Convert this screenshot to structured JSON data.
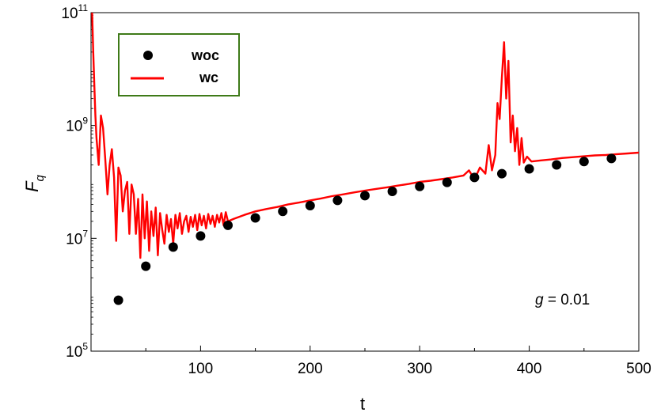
{
  "chart_data": {
    "type": "line",
    "title": "",
    "xlabel": "t",
    "ylabel": "F",
    "ylabel_sub": "q",
    "xlim": [
      0,
      500
    ],
    "ylim": [
      100000,
      100000000000
    ],
    "yscale": "log",
    "grid": false,
    "legend_position": "top-left",
    "x_ticks": [
      {
        "value": 100,
        "label": "100"
      },
      {
        "value": 200,
        "label": "200"
      },
      {
        "value": 300,
        "label": "300"
      },
      {
        "value": 400,
        "label": "400"
      },
      {
        "value": 500,
        "label": "500"
      }
    ],
    "y_ticks": [
      {
        "value": 100000,
        "base": "10",
        "exp": "5"
      },
      {
        "value": 10000000,
        "base": "10",
        "exp": "7"
      },
      {
        "value": 1000000000,
        "base": "10",
        "exp": "9"
      },
      {
        "value": 100000000000,
        "base": "10",
        "exp": "11"
      }
    ],
    "annotation": {
      "var": "g",
      "text": " = 0.01"
    },
    "series": [
      {
        "name": "woc",
        "kind": "scatter",
        "color": "#000000",
        "x": [
          25,
          50,
          75,
          100,
          125,
          150,
          175,
          200,
          225,
          250,
          275,
          300,
          325,
          350,
          375,
          400,
          425,
          450,
          475
        ],
        "y": [
          800000,
          3200000,
          7000000,
          11000000,
          17000000,
          23000000,
          30000000,
          38000000,
          47000000,
          57000000,
          68000000,
          83000000,
          98000000,
          120000000,
          140000000,
          170000000,
          200000000,
          230000000,
          260000000
        ]
      },
      {
        "name": "wc",
        "kind": "line",
        "color": "#ff0000",
        "x": [
          1,
          2,
          3,
          4,
          5,
          7,
          9,
          11,
          13,
          15,
          17,
          19,
          21,
          23,
          25,
          27,
          29,
          31,
          33,
          35,
          37,
          39,
          41,
          43,
          45,
          47,
          49,
          51,
          53,
          55,
          57,
          59,
          61,
          63,
          65,
          67,
          69,
          71,
          73,
          75,
          77,
          79,
          81,
          83,
          85,
          87,
          89,
          91,
          93,
          95,
          97,
          99,
          101,
          103,
          105,
          107,
          109,
          111,
          113,
          115,
          117,
          119,
          121,
          123,
          125,
          130,
          140,
          150,
          160,
          170,
          180,
          190,
          200,
          210,
          220,
          230,
          240,
          250,
          260,
          270,
          280,
          290,
          300,
          310,
          320,
          330,
          340,
          345,
          350,
          355,
          360,
          363,
          366,
          369,
          371,
          373,
          375,
          377,
          379,
          381,
          383,
          385,
          387,
          389,
          391,
          393,
          395,
          398,
          402,
          410,
          420,
          430,
          440,
          450,
          460,
          470,
          480,
          490,
          500
        ],
        "y": [
          100000000000,
          20000000000,
          5000000000,
          1500000000,
          600000000,
          200000000,
          1500000000,
          900000000,
          250000000,
          60000000,
          200000000,
          380000000,
          120000000,
          9000000,
          180000000,
          130000000,
          30000000,
          70000000,
          100000000,
          12000000,
          90000000,
          60000000,
          12000000,
          50000000,
          4500000,
          60000000,
          10000000,
          45000000,
          6000000,
          30000000,
          11000000,
          35000000,
          5000000,
          28000000,
          14000000,
          8000000,
          26000000,
          13000000,
          22000000,
          8000000,
          26000000,
          15000000,
          28000000,
          12000000,
          20000000,
          25000000,
          13000000,
          24000000,
          16000000,
          26000000,
          14000000,
          27000000,
          17000000,
          25000000,
          15000000,
          27000000,
          18000000,
          25000000,
          16000000,
          26000000,
          19000000,
          28000000,
          17000000,
          29000000,
          20000000,
          22000000,
          26000000,
          30000000,
          33000000,
          36000000,
          40000000,
          43000000,
          47000000,
          51000000,
          56000000,
          60000000,
          65000000,
          70000000,
          75000000,
          80000000,
          86000000,
          92000000,
          100000000,
          105000000,
          112000000,
          120000000,
          130000000,
          160000000,
          110000000,
          180000000,
          140000000,
          450000000,
          160000000,
          300000000,
          2500000000,
          1300000000,
          7000000000,
          30000000000,
          3000000000,
          14000000000,
          500000000,
          1500000000,
          350000000,
          900000000,
          200000000,
          600000000,
          220000000,
          280000000,
          230000000,
          240000000,
          250000000,
          265000000,
          275000000,
          285000000,
          295000000,
          300000000,
          310000000,
          320000000,
          330000000
        ]
      }
    ]
  }
}
